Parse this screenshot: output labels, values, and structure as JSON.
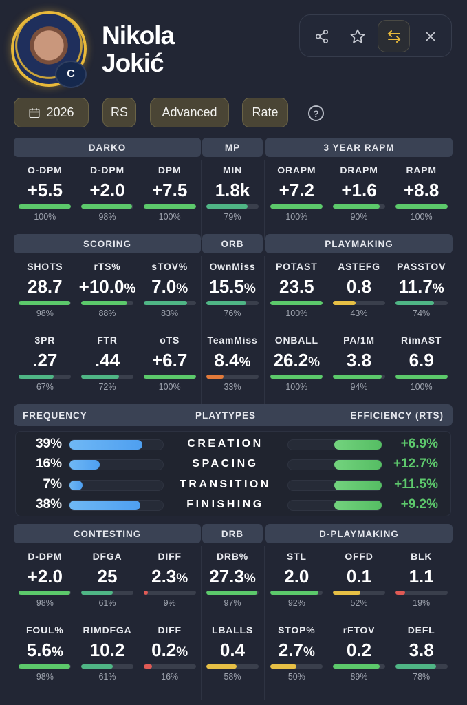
{
  "player": {
    "first_name": "Nikola",
    "last_name": "Jokić",
    "position": "C"
  },
  "actions": [
    {
      "icon": "share-icon",
      "glyph": "⋖"
    },
    {
      "icon": "star-icon",
      "glyph": "☆"
    },
    {
      "icon": "swap-icon",
      "glyph": "⇆",
      "active": true
    },
    {
      "icon": "close-icon",
      "glyph": "✕"
    }
  ],
  "filters": {
    "season": "2026",
    "season_type": "RS",
    "mode": "Advanced",
    "per": "Rate",
    "help": "?"
  },
  "colors": {
    "accent": "#e8b93a",
    "good": "#5cc96b",
    "ok": "#4fb585",
    "mid": "#e6bf45",
    "low": "#e27a3a",
    "bad": "#e05a55",
    "freq": "#5aa8f2"
  },
  "sections": [
    {
      "groups": [
        {
          "header": "DARKO",
          "rows": [
            [
              {
                "label": "O-DPM",
                "value": "+5.5",
                "pct": 100
              },
              {
                "label": "D-DPM",
                "value": "+2.0",
                "pct": 98
              },
              {
                "label": "DPM",
                "value": "+7.5",
                "pct": 100
              }
            ]
          ]
        },
        {
          "header": "MP",
          "rows": [
            [
              {
                "label": "MIN",
                "value": "1.8k",
                "pct": 79
              }
            ]
          ]
        },
        {
          "header": "3 YEAR RAPM",
          "rows": [
            [
              {
                "label": "ORAPM",
                "value": "+7.2",
                "pct": 100
              },
              {
                "label": "DRAPM",
                "value": "+1.6",
                "pct": 90
              },
              {
                "label": "RAPM",
                "value": "+8.8",
                "pct": 100
              }
            ]
          ]
        }
      ]
    },
    {
      "groups": [
        {
          "header": "SCORING",
          "rows": [
            [
              {
                "label": "SHOTS",
                "value": "28.7",
                "pct": 98
              },
              {
                "label": "rTS%",
                "value": "+10.0",
                "unit": "%",
                "pct": 88
              },
              {
                "label": "sTOV%",
                "value": "7.0",
                "unit": "%",
                "pct": 83
              }
            ],
            [
              {
                "label": "3PR",
                "value": ".27",
                "pct": 67
              },
              {
                "label": "FTR",
                "value": ".44",
                "pct": 72
              },
              {
                "label": "oTS",
                "value": "+6.7",
                "pct": 100
              }
            ]
          ]
        },
        {
          "header": "ORB",
          "rows": [
            [
              {
                "label": "OwnMiss",
                "value": "15.5",
                "unit": "%",
                "pct": 76
              }
            ],
            [
              {
                "label": "TeamMiss",
                "value": "8.4",
                "unit": "%",
                "pct": 33
              }
            ]
          ]
        },
        {
          "header": "PLAYMAKING",
          "rows": [
            [
              {
                "label": "POTAST",
                "value": "23.5",
                "pct": 100
              },
              {
                "label": "ASTEFG",
                "value": "0.8",
                "pct": 43
              },
              {
                "label": "PASSTOV",
                "value": "11.7",
                "unit": "%",
                "pct": 74
              }
            ],
            [
              {
                "label": "ONBALL",
                "value": "26.2",
                "unit": "%",
                "pct": 100
              },
              {
                "label": "PA/1M",
                "value": "3.8",
                "pct": 94
              },
              {
                "label": "RimAST",
                "value": "6.9",
                "pct": 100
              }
            ]
          ]
        }
      ]
    },
    {
      "groups": [
        {
          "header": "CONTESTING",
          "rows": [
            [
              {
                "label": "D-DPM",
                "value": "+2.0",
                "pct": 98
              },
              {
                "label": "DFGA",
                "value": "25",
                "pct": 61
              },
              {
                "label": "DIFF",
                "value": "2.3",
                "unit": "%",
                "pct": 9
              }
            ],
            [
              {
                "label": "FOUL%",
                "value": "5.6",
                "unit": "%",
                "pct": 98
              },
              {
                "label": "RIMDFGA",
                "value": "10.2",
                "pct": 61
              },
              {
                "label": "DIFF",
                "value": "0.2",
                "unit": "%",
                "pct": 16
              }
            ]
          ]
        },
        {
          "header": "DRB",
          "rows": [
            [
              {
                "label": "DRB%",
                "value": "27.3",
                "unit": "%",
                "pct": 97
              }
            ],
            [
              {
                "label": "LBALLS",
                "value": "0.4",
                "pct": 58
              }
            ]
          ]
        },
        {
          "header": "D-PLAYMAKING",
          "rows": [
            [
              {
                "label": "STL",
                "value": "2.0",
                "pct": 92
              },
              {
                "label": "OFFD",
                "value": "0.1",
                "pct": 52
              },
              {
                "label": "BLK",
                "value": "1.1",
                "pct": 19
              }
            ],
            [
              {
                "label": "STOP%",
                "value": "2.7",
                "unit": "%",
                "pct": 50
              },
              {
                "label": "rFTOV",
                "value": "0.2",
                "pct": 89
              },
              {
                "label": "DEFL",
                "value": "3.8",
                "pct": 78
              }
            ]
          ]
        }
      ]
    }
  ],
  "playtypes": {
    "headers": {
      "frequency": "FREQUENCY",
      "playtypes": "PLAYTYPES",
      "efficiency": "EFFICIENCY (RTS)"
    },
    "rows": [
      {
        "name": "CREATION",
        "frequency": "39%",
        "freq_value": 39,
        "efficiency": "+6.9%"
      },
      {
        "name": "SPACING",
        "frequency": "16%",
        "freq_value": 16,
        "efficiency": "+12.7%"
      },
      {
        "name": "TRANSITION",
        "frequency": "7%",
        "freq_value": 7,
        "efficiency": "+11.5%"
      },
      {
        "name": "FINISHING",
        "frequency": "38%",
        "freq_value": 38,
        "efficiency": "+9.2%"
      }
    ]
  }
}
